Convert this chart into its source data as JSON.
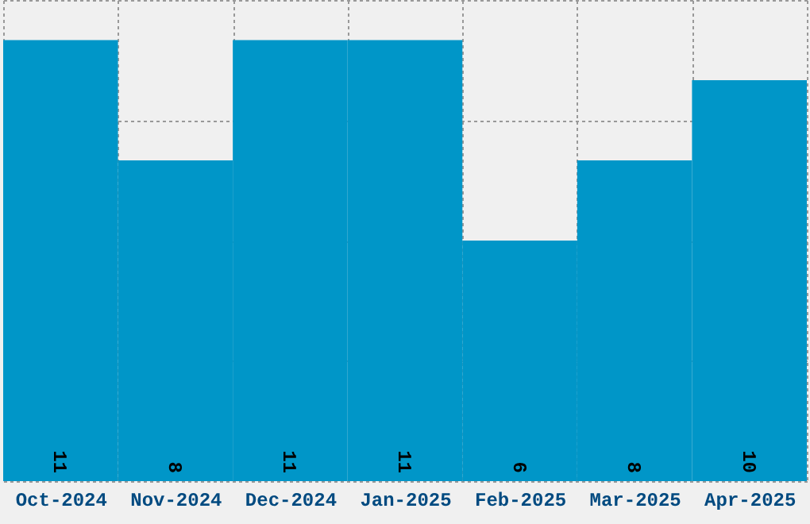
{
  "chart_data": {
    "type": "bar",
    "categories": [
      "Oct-2024",
      "Nov-2024",
      "Dec-2024",
      "Jan-2025",
      "Feb-2025",
      "Mar-2025",
      "Apr-2025"
    ],
    "values": [
      11,
      8,
      11,
      11,
      6,
      8,
      10
    ],
    "color": "#0096c8",
    "ylim": [
      0,
      12
    ],
    "yticks": [
      {
        "value": 0,
        "label": null
      },
      {
        "value": 3,
        "label": null
      },
      {
        "value": 6,
        "label": null
      },
      {
        "value": 9,
        "label": null
      },
      {
        "value": 12,
        "label": null
      }
    ],
    "grid": true,
    "data_labels": true,
    "tick_labels": "x"
  }
}
